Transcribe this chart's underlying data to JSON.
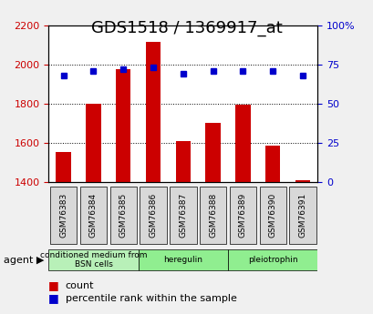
{
  "title": "GDS1518 / 1369917_at",
  "categories": [
    "GSM76383",
    "GSM76384",
    "GSM76385",
    "GSM76386",
    "GSM76387",
    "GSM76388",
    "GSM76389",
    "GSM76390",
    "GSM76391"
  ],
  "bar_values": [
    1555,
    1800,
    1975,
    2115,
    1608,
    1700,
    1795,
    1585,
    1410
  ],
  "percentile_values": [
    68,
    71,
    72,
    73,
    69,
    71,
    71,
    71,
    68
  ],
  "ylim_left": [
    1400,
    2200
  ],
  "ylim_right": [
    0,
    100
  ],
  "yticks_left": [
    1400,
    1600,
    1800,
    2000,
    2200
  ],
  "yticks_right": [
    0,
    25,
    50,
    75,
    100
  ],
  "bar_color": "#cc0000",
  "dot_color": "#0000cc",
  "grid_color": "#000000",
  "agent_groups": [
    {
      "label": "conditioned medium from\nBSN cells",
      "start": 0,
      "end": 3,
      "color": "#b8f0b8"
    },
    {
      "label": "heregulin",
      "start": 3,
      "end": 6,
      "color": "#90ee90"
    },
    {
      "label": "pleiotrophin",
      "start": 6,
      "end": 9,
      "color": "#90ee90"
    }
  ],
  "legend_items": [
    {
      "label": "count",
      "color": "#cc0000"
    },
    {
      "label": "percentile rank within the sample",
      "color": "#0000cc"
    }
  ],
  "background_color": "#f0f0f0",
  "plot_bg": "#ffffff",
  "title_fontsize": 13,
  "tick_label_fontsize": 8,
  "bar_width": 0.5
}
